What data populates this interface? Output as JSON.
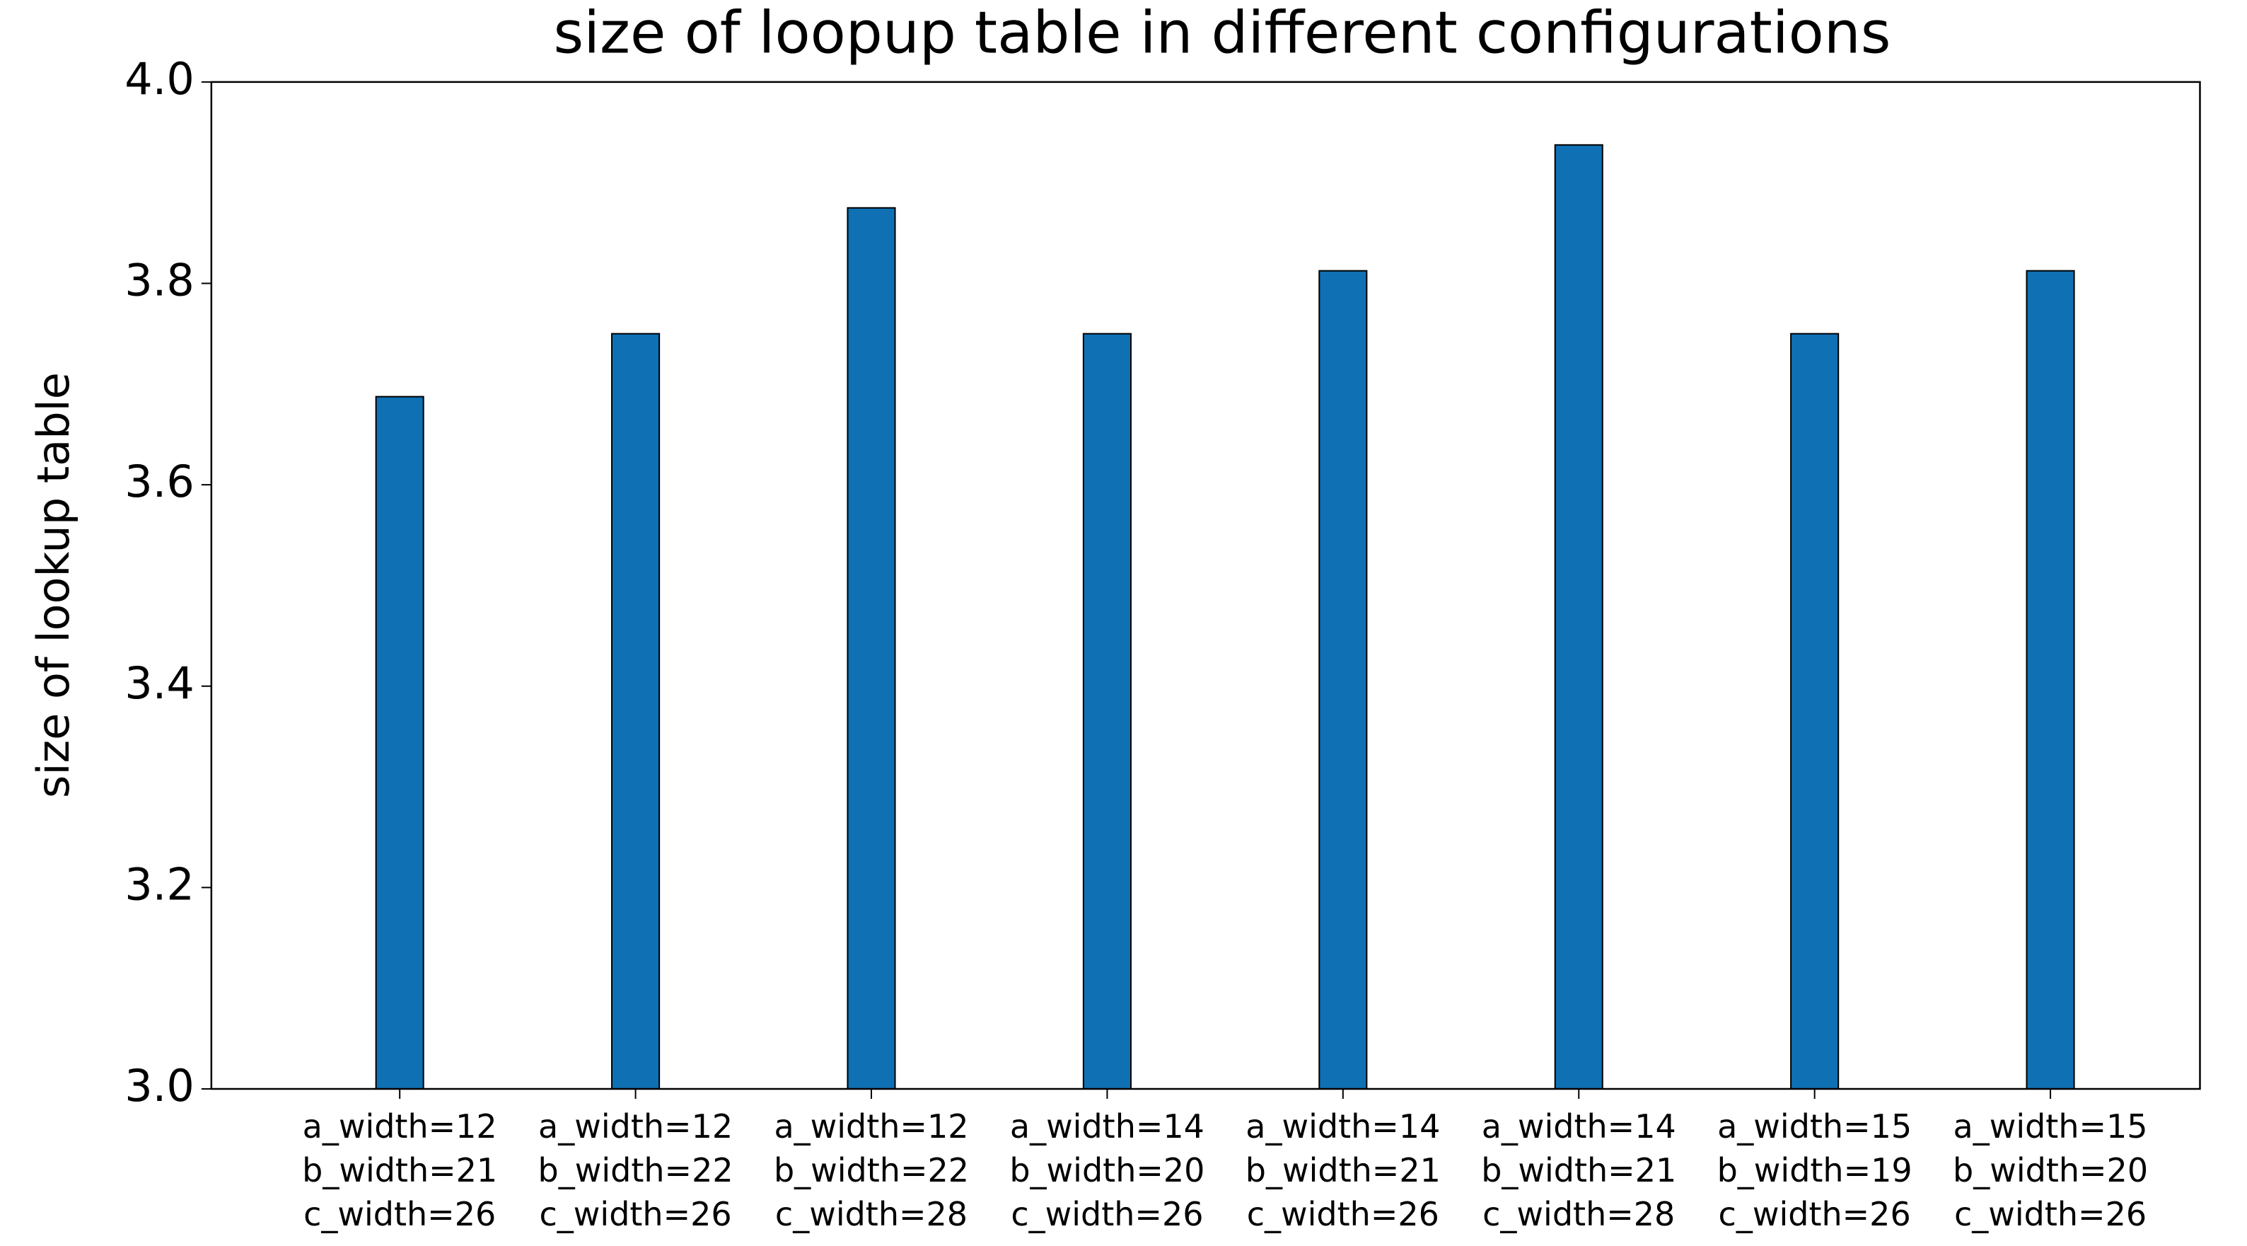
{
  "chart_data": {
    "type": "bar",
    "title": "size of loopup table in different configurations",
    "ylabel": "size of lookup table",
    "categories": [
      [
        "a_width=12",
        "b_width=21",
        "c_width=26"
      ],
      [
        "a_width=12",
        "b_width=22",
        "c_width=26"
      ],
      [
        "a_width=12",
        "b_width=22",
        "c_width=28"
      ],
      [
        "a_width=14",
        "b_width=20",
        "c_width=26"
      ],
      [
        "a_width=14",
        "b_width=21",
        "c_width=26"
      ],
      [
        "a_width=14",
        "b_width=21",
        "c_width=28"
      ],
      [
        "a_width=15",
        "b_width=19",
        "c_width=26"
      ],
      [
        "a_width=15",
        "b_width=20",
        "c_width=26"
      ]
    ],
    "values": [
      3.6875,
      3.75,
      3.875,
      3.75,
      3.8125,
      3.9375,
      3.75,
      3.8125
    ],
    "color": "#0f70b3",
    "ylim": [
      3,
      4
    ],
    "yticks": [
      {
        "value": 3,
        "label": "3.0"
      },
      3.2,
      3.4,
      3.6,
      3.8,
      {
        "value": 4,
        "label": "4.0"
      }
    ],
    "grid": false
  }
}
